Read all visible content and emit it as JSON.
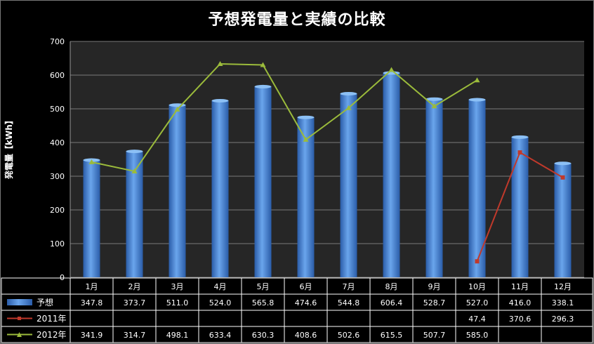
{
  "chart_data": {
    "type": "bar",
    "title": "予想発電量と実績の比較",
    "ylabel": "発電量【kWh】",
    "xlabel": "",
    "ylim": [
      0,
      700
    ],
    "yticks": [
      "0",
      "100",
      "200",
      "300",
      "400",
      "500",
      "600",
      "700"
    ],
    "categories": [
      "1月",
      "2月",
      "3月",
      "4月",
      "5月",
      "6月",
      "7月",
      "8月",
      "9月",
      "10月",
      "11月",
      "12月"
    ],
    "series": [
      {
        "name": "予想",
        "type": "bar",
        "color": "#3f80d4",
        "values": [
          347.8,
          373.7,
          511.0,
          524.0,
          565.8,
          474.6,
          544.8,
          606.4,
          528.7,
          527.0,
          416.0,
          338.1
        ],
        "labels": [
          "347.8",
          "373.7",
          "511.0",
          "524.0",
          "565.8",
          "474.6",
          "544.8",
          "606.4",
          "528.7",
          "527.0",
          "416.0",
          "338.1"
        ]
      },
      {
        "name": "2011年",
        "type": "line",
        "color": "#c0392b",
        "values": [
          null,
          null,
          null,
          null,
          null,
          null,
          null,
          null,
          null,
          47.4,
          370.6,
          296.3
        ],
        "labels": [
          "",
          "",
          "",
          "",
          "",
          "",
          "",
          "",
          "",
          "47.4",
          "370.6",
          "296.3"
        ]
      },
      {
        "name": "2012年",
        "type": "line",
        "color": "#9bbb3b",
        "values": [
          341.9,
          314.7,
          498.1,
          633.4,
          630.3,
          408.6,
          502.6,
          615.5,
          507.7,
          585.0,
          null,
          null
        ],
        "labels": [
          "341.9",
          "314.7",
          "498.1",
          "633.4",
          "630.3",
          "408.6",
          "502.6",
          "615.5",
          "507.7",
          "585.0",
          "",
          ""
        ]
      }
    ],
    "grid": true,
    "legend": "data-table"
  }
}
